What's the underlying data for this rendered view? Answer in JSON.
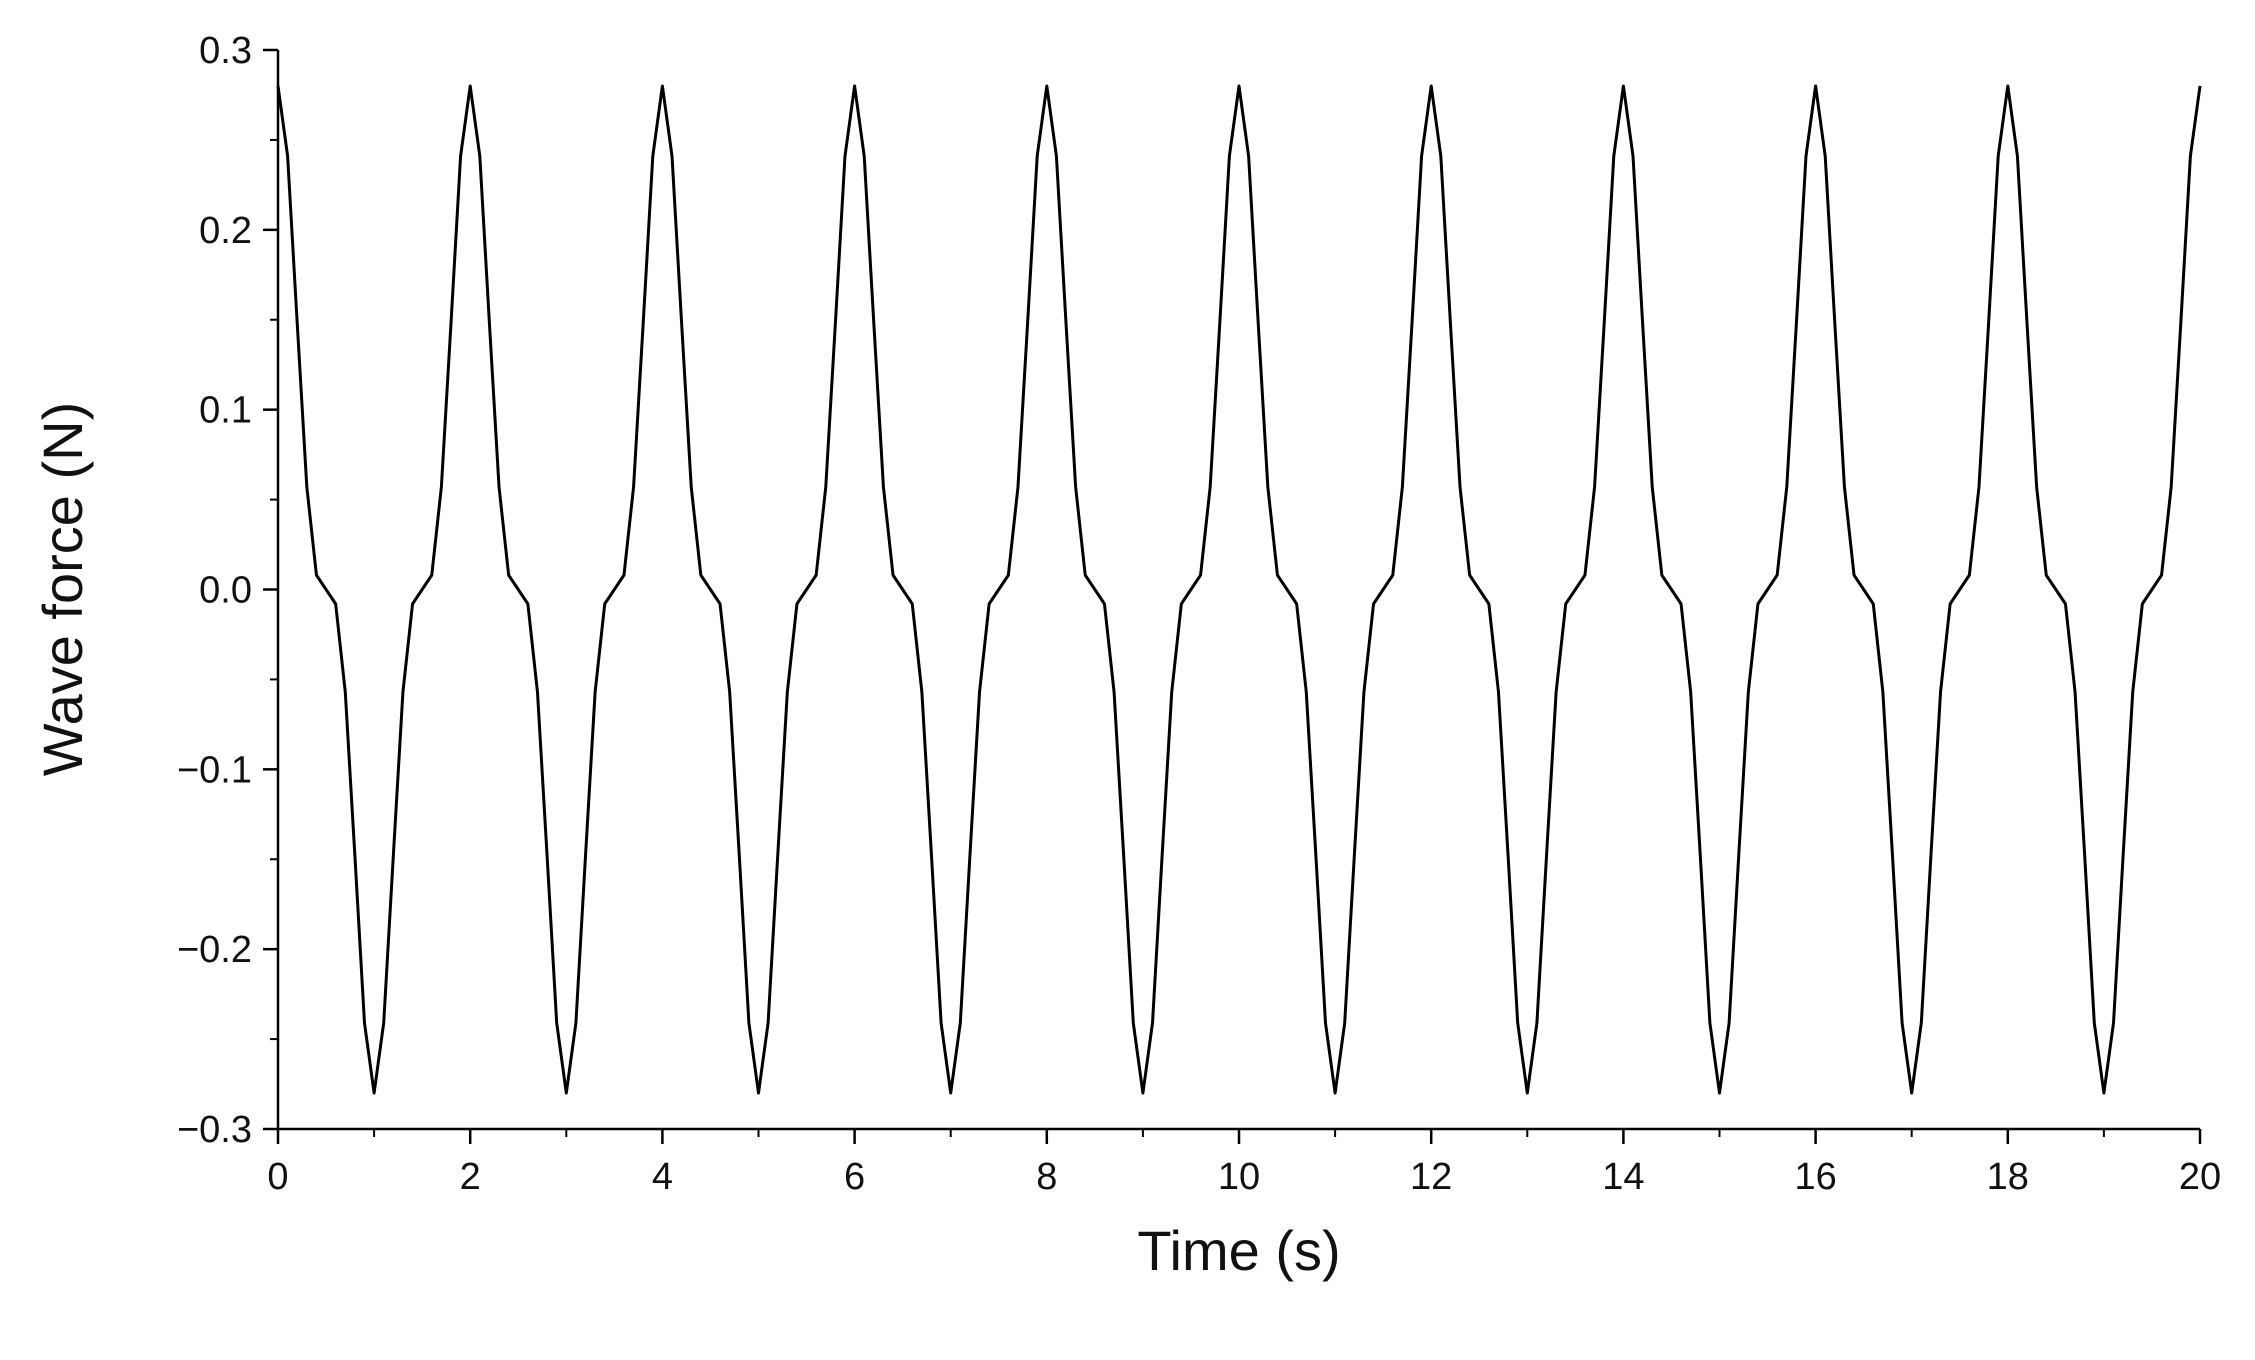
{
  "chart_data": {
    "type": "line",
    "xlabel": "Time (s)",
    "ylabel": "Wave force (N)",
    "xlim": [
      0,
      20
    ],
    "ylim": [
      -0.3,
      0.3
    ],
    "xticks": [
      0,
      2,
      4,
      6,
      8,
      10,
      12,
      14,
      16,
      18,
      20
    ],
    "xticks_minor": [
      1,
      3,
      5,
      7,
      9,
      11,
      13,
      15,
      17,
      19
    ],
    "yticks": [
      {
        "value": -0.3,
        "label": "−0.3"
      },
      {
        "value": -0.2,
        "label": "−0.2"
      },
      {
        "value": -0.1,
        "label": "−0.1"
      },
      {
        "value": 0,
        "label": "0.0"
      },
      0.1,
      0.2,
      0.3
    ],
    "yticks_minor": [
      -0.25,
      -0.15,
      -0.05,
      0.05,
      0.15,
      0.25
    ],
    "grid": false,
    "series": [
      {
        "color": "#000000",
        "x": [
          0,
          0.1,
          0.2,
          0.3,
          0.4,
          0.5,
          0.6,
          0.7,
          0.8,
          0.9,
          1,
          1.1,
          1.2,
          1.3,
          1.4,
          1.5,
          1.6,
          1.7,
          1.8,
          1.9,
          2,
          2.1,
          2.2,
          2.3,
          2.4,
          2.5,
          2.6,
          2.7,
          2.8,
          2.9,
          3,
          3.1,
          3.2,
          3.3,
          3.4,
          3.5,
          3.6,
          3.7,
          3.8,
          3.9,
          4,
          4.1,
          4.2,
          4.3,
          4.4,
          4.5,
          4.6,
          4.7,
          4.8,
          4.9,
          5,
          5.1,
          5.2,
          5.3,
          5.4,
          5.5,
          5.6,
          5.7,
          5.8,
          5.9,
          6,
          6.1,
          6.2,
          6.3,
          6.4,
          6.5,
          6.6,
          6.7,
          6.8,
          6.9,
          7,
          7.1,
          7.2,
          7.3,
          7.4,
          7.5,
          7.6,
          7.7,
          7.8,
          7.9,
          8,
          8.1,
          8.2,
          8.3,
          8.4,
          8.5,
          8.6,
          8.7,
          8.8,
          8.9,
          9,
          9.1,
          9.2,
          9.3,
          9.4,
          9.5,
          9.6,
          9.7,
          9.8,
          9.9,
          10,
          10.1,
          10.2,
          10.3,
          10.4,
          10.5,
          10.6,
          10.7,
          10.8,
          10.9,
          11,
          11.1,
          11.2,
          11.3,
          11.4,
          11.5,
          11.6,
          11.7,
          11.8,
          11.9,
          12,
          12.1,
          12.2,
          12.3,
          12.4,
          12.5,
          12.6,
          12.7,
          12.8,
          12.9,
          13,
          13.1,
          13.2,
          13.3,
          13.4,
          13.5,
          13.6,
          13.7,
          13.8,
          13.9,
          14,
          14.1,
          14.2,
          14.3,
          14.4,
          14.5,
          14.6,
          14.7,
          14.8,
          14.9,
          15,
          15.1,
          15.2,
          15.3,
          15.4,
          15.5,
          15.6,
          15.7,
          15.8,
          15.9,
          16,
          16.1,
          16.2,
          16.3,
          16.4,
          16.5,
          16.6,
          16.7,
          16.8,
          16.9,
          17,
          17.1,
          17.2,
          17.3,
          17.4,
          17.5,
          17.6,
          17.7,
          17.8,
          17.9,
          18,
          18.1,
          18.2,
          18.3,
          18.4,
          18.5,
          18.6,
          18.7,
          18.8,
          18.9,
          19,
          19.1,
          19.2,
          19.3,
          19.4,
          19.5,
          19.6,
          19.7,
          19.8,
          19.9,
          20
        ],
        "values": [
          0.28,
          0.241,
          0.148,
          0.057,
          0.008,
          0,
          -0.008,
          -0.057,
          -0.148,
          -0.241,
          -0.28,
          -0.241,
          -0.148,
          -0.057,
          -0.008,
          0,
          0.008,
          0.057,
          0.148,
          0.241,
          0.28,
          0.241,
          0.148,
          0.057,
          0.008,
          0,
          -0.008,
          -0.057,
          -0.148,
          -0.241,
          -0.28,
          -0.241,
          -0.148,
          -0.057,
          -0.008,
          0,
          0.008,
          0.057,
          0.148,
          0.241,
          0.28,
          0.241,
          0.148,
          0.057,
          0.008,
          0,
          -0.008,
          -0.057,
          -0.148,
          -0.241,
          -0.28,
          -0.241,
          -0.148,
          -0.057,
          -0.008,
          0,
          0.008,
          0.057,
          0.148,
          0.241,
          0.28,
          0.241,
          0.148,
          0.057,
          0.008,
          0,
          -0.008,
          -0.057,
          -0.148,
          -0.241,
          -0.28,
          -0.241,
          -0.148,
          -0.057,
          -0.008,
          0,
          0.008,
          0.057,
          0.148,
          0.241,
          0.28,
          0.241,
          0.148,
          0.057,
          0.008,
          0,
          -0.008,
          -0.057,
          -0.148,
          -0.241,
          -0.28,
          -0.241,
          -0.148,
          -0.057,
          -0.008,
          0,
          0.008,
          0.057,
          0.148,
          0.241,
          0.28,
          0.241,
          0.148,
          0.057,
          0.008,
          0,
          -0.008,
          -0.057,
          -0.148,
          -0.241,
          -0.28,
          -0.241,
          -0.148,
          -0.057,
          -0.008,
          0,
          0.008,
          0.057,
          0.148,
          0.241,
          0.28,
          0.241,
          0.148,
          0.057,
          0.008,
          0,
          -0.008,
          -0.057,
          -0.148,
          -0.241,
          -0.28,
          -0.241,
          -0.148,
          -0.057,
          -0.008,
          0,
          0.008,
          0.057,
          0.148,
          0.241,
          0.28,
          0.241,
          0.148,
          0.057,
          0.008,
          0,
          -0.008,
          -0.057,
          -0.148,
          -0.241,
          -0.28,
          -0.241,
          -0.148,
          -0.057,
          -0.008,
          0,
          0.008,
          0.057,
          0.148,
          0.241,
          0.28,
          0.241,
          0.148,
          0.057,
          0.008,
          0,
          -0.008,
          -0.057,
          -0.148,
          -0.241,
          -0.28,
          -0.241,
          -0.148,
          -0.057,
          -0.008,
          0,
          0.008,
          0.057,
          0.148,
          0.241,
          0.28,
          0.241,
          0.148,
          0.057,
          0.008,
          0,
          -0.008,
          -0.057,
          -0.148,
          -0.241,
          -0.28,
          -0.241,
          -0.148,
          -0.057,
          -0.008,
          0,
          0.008,
          0.057,
          0.148,
          0.241,
          0.28
        ]
      }
    ]
  }
}
